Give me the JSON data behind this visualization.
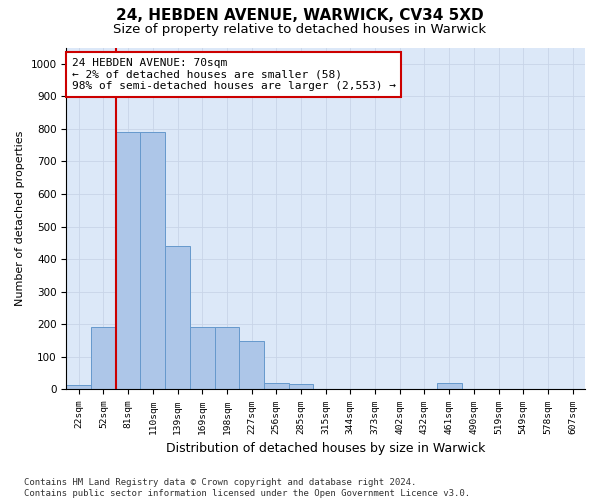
{
  "title1": "24, HEBDEN AVENUE, WARWICK, CV34 5XD",
  "title2": "Size of property relative to detached houses in Warwick",
  "xlabel": "Distribution of detached houses by size in Warwick",
  "ylabel": "Number of detached properties",
  "categories": [
    "22sqm",
    "52sqm",
    "81sqm",
    "110sqm",
    "139sqm",
    "169sqm",
    "198sqm",
    "227sqm",
    "256sqm",
    "285sqm",
    "315sqm",
    "344sqm",
    "373sqm",
    "402sqm",
    "432sqm",
    "461sqm",
    "490sqm",
    "519sqm",
    "549sqm",
    "578sqm",
    "607sqm"
  ],
  "values": [
    15,
    192,
    790,
    790,
    440,
    192,
    192,
    148,
    20,
    18,
    0,
    0,
    0,
    0,
    0,
    20,
    0,
    0,
    0,
    0,
    0
  ],
  "bar_color": "#adc6e8",
  "bar_edge_color": "#6699cc",
  "red_line_x": 2,
  "marker_color": "#cc0000",
  "annotation_text": "24 HEBDEN AVENUE: 70sqm\n← 2% of detached houses are smaller (58)\n98% of semi-detached houses are larger (2,553) →",
  "annotation_box_color": "#ffffff",
  "annotation_box_edge_color": "#cc0000",
  "ylim": [
    0,
    1050
  ],
  "yticks": [
    0,
    100,
    200,
    300,
    400,
    500,
    600,
    700,
    800,
    900,
    1000
  ],
  "grid_color": "#c8d4e8",
  "background_color": "#dce8f8",
  "footer_text": "Contains HM Land Registry data © Crown copyright and database right 2024.\nContains public sector information licensed under the Open Government Licence v3.0.",
  "title1_fontsize": 11,
  "title2_fontsize": 9.5,
  "xlabel_fontsize": 9,
  "ylabel_fontsize": 8,
  "annotation_fontsize": 8,
  "footer_fontsize": 6.5
}
